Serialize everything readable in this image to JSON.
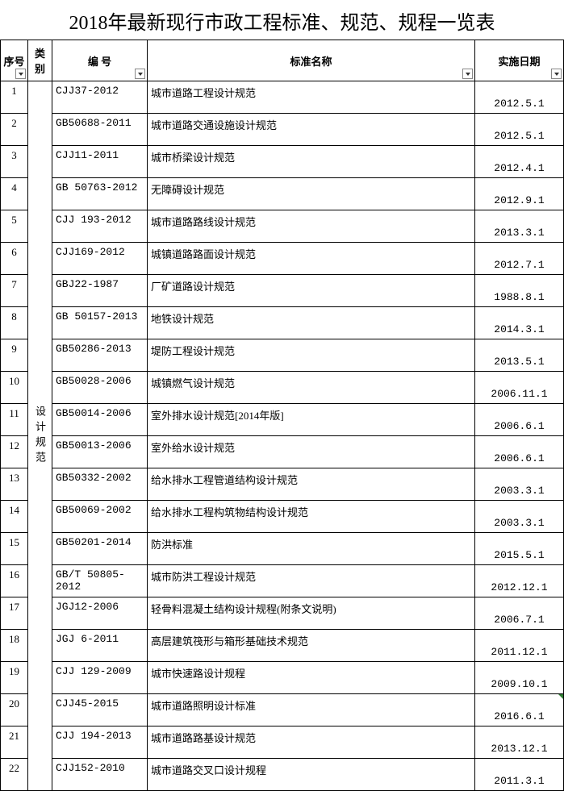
{
  "title": "2018年最新现行市政工程标准、规范、规程一览表",
  "columns": {
    "seq": "序号",
    "cat": "类别",
    "code": "编  号",
    "name": "标准名称",
    "date": "实施日期"
  },
  "category": "设计规范",
  "rows": [
    {
      "seq": "1",
      "code": "CJJ37-2012",
      "name": "城市道路工程设计规范",
      "date": "2012.5.1"
    },
    {
      "seq": "2",
      "code": "GB50688-2011",
      "name": "城市道路交通设施设计规范",
      "date": "2012.5.1"
    },
    {
      "seq": "3",
      "code": "CJJ11-2011",
      "name": "城市桥梁设计规范",
      "date": "2012.4.1"
    },
    {
      "seq": "4",
      "code": "GB 50763-2012",
      "name": "无障碍设计规范",
      "date": "2012.9.1"
    },
    {
      "seq": "5",
      "code": "CJJ 193-2012",
      "name": "城市道路路线设计规范",
      "date": "2013.3.1"
    },
    {
      "seq": "6",
      "code": "CJJ169-2012",
      "name": "城镇道路路面设计规范",
      "date": "2012.7.1"
    },
    {
      "seq": "7",
      "code": "GBJ22-1987",
      "name": "厂矿道路设计规范",
      "date": "1988.8.1"
    },
    {
      "seq": "8",
      "code": "GB 50157-2013",
      "name": "地铁设计规范",
      "date": "2014.3.1"
    },
    {
      "seq": "9",
      "code": "GB50286-2013",
      "name": "堤防工程设计规范",
      "date": "2013.5.1"
    },
    {
      "seq": "10",
      "code": "GB50028-2006",
      "name": "城镇燃气设计规范",
      "date": "2006.11.1"
    },
    {
      "seq": "11",
      "code": "GB50014-2006",
      "name": "室外排水设计规范[2014年版]",
      "date": "2006.6.1"
    },
    {
      "seq": "12",
      "code": "GB50013-2006",
      "name": "室外给水设计规范",
      "date": "2006.6.1"
    },
    {
      "seq": "13",
      "code": "GB50332-2002",
      "name": "给水排水工程管道结构设计规范",
      "date": "2003.3.1"
    },
    {
      "seq": "14",
      "code": "GB50069-2002",
      "name": "给水排水工程构筑物结构设计规范",
      "date": "2003.3.1"
    },
    {
      "seq": "15",
      "code": "GB50201-2014",
      "name": "防洪标准",
      "date": "2015.5.1"
    },
    {
      "seq": "16",
      "code": "GB/T 50805-2012",
      "name": "城市防洪工程设计规范",
      "date": "2012.12.1"
    },
    {
      "seq": "17",
      "code": "JGJ12-2006",
      "name": "轻骨料混凝土结构设计规程(附条文说明)",
      "date": "2006.7.1"
    },
    {
      "seq": "18",
      "code": "JGJ 6-2011",
      "name": "高层建筑筏形与箱形基础技术规范",
      "date": "2011.12.1"
    },
    {
      "seq": "19",
      "code": "CJJ 129-2009",
      "name": "城市快速路设计规程",
      "date": "2009.10.1"
    },
    {
      "seq": "20",
      "code": "CJJ45-2015",
      "name": "城市道路照明设计标准",
      "date": "2016.6.1",
      "corner": true
    },
    {
      "seq": "21",
      "code": "CJJ 194-2013",
      "name": "城市道路路基设计规范",
      "date": "2013.12.1"
    },
    {
      "seq": "22",
      "code": "CJJ152-2010",
      "name": "城市道路交叉口设计规程",
      "date": "2011.3.1"
    }
  ]
}
